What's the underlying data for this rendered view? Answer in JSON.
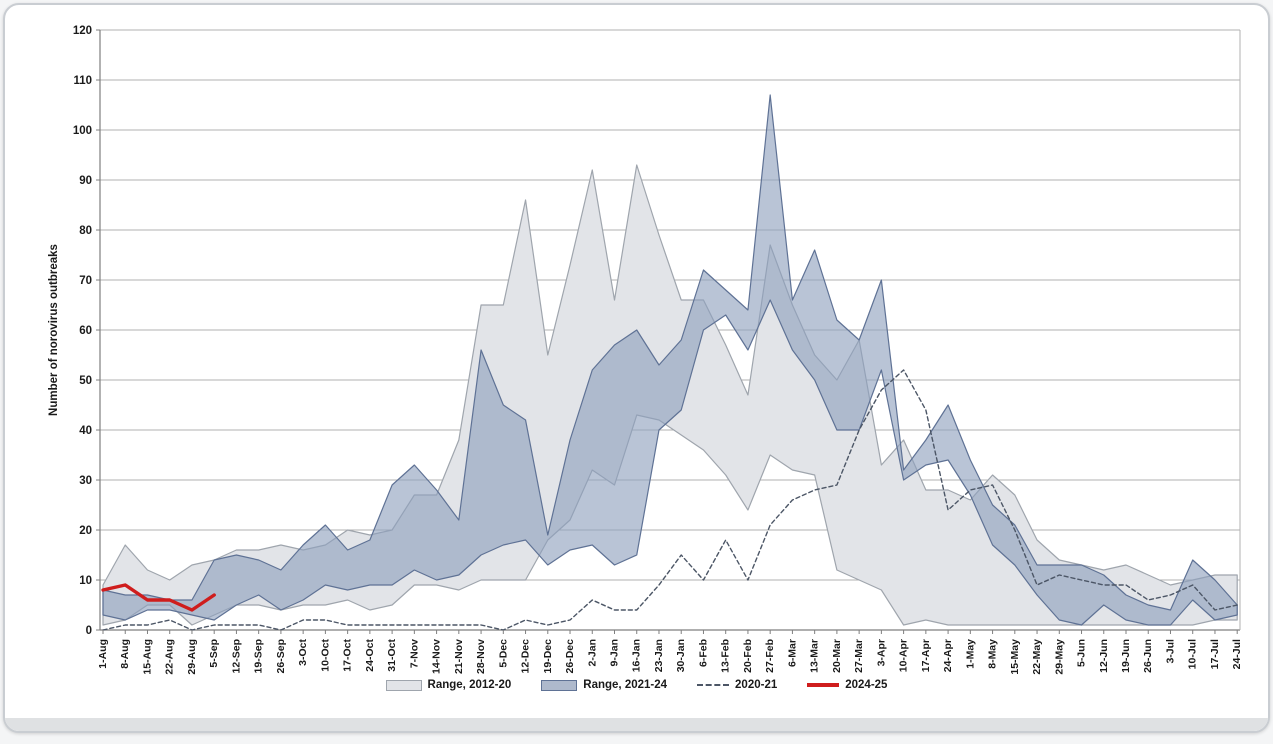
{
  "chart_data": {
    "type": "area",
    "title": "",
    "xlabel": "",
    "ylabel": "Number of norovirus outbreaks",
    "ylim": [
      0,
      120
    ],
    "ytick_step": 10,
    "grid": "horizontal-gridlines-on",
    "legend_position": "bottom",
    "categories": [
      "1-Aug",
      "8-Aug",
      "15-Aug",
      "22-Aug",
      "29-Aug",
      "5-Sep",
      "12-Sep",
      "19-Sep",
      "26-Sep",
      "3-Oct",
      "10-Oct",
      "17-Oct",
      "24-Oct",
      "31-Oct",
      "7-Nov",
      "14-Nov",
      "21-Nov",
      "28-Nov",
      "5-Dec",
      "12-Dec",
      "19-Dec",
      "26-Dec",
      "2-Jan",
      "9-Jan",
      "16-Jan",
      "23-Jan",
      "30-Jan",
      "6-Feb",
      "13-Feb",
      "20-Feb",
      "27-Feb",
      "6-Mar",
      "13-Mar",
      "20-Mar",
      "27-Mar",
      "3-Apr",
      "10-Apr",
      "17-Apr",
      "24-Apr",
      "1-May",
      "8-May",
      "15-May",
      "22-May",
      "29-May",
      "5-Jun",
      "12-Jun",
      "19-Jun",
      "26-Jun",
      "3-Jul",
      "10-Jul",
      "17-Jul",
      "24-Jul"
    ],
    "series": [
      {
        "name": "Range, 2012-20",
        "type": "band",
        "fill": "#e2e4e8",
        "border": "#9fa5ad",
        "min": [
          1,
          2,
          5,
          5,
          1,
          3,
          5,
          5,
          4,
          5,
          5,
          6,
          4,
          5,
          9,
          9,
          8,
          10,
          10,
          10,
          18,
          22,
          32,
          29,
          43,
          42,
          39,
          36,
          31,
          24,
          35,
          32,
          31,
          12,
          10,
          8,
          1,
          2,
          1,
          1,
          1,
          1,
          1,
          1,
          1,
          1,
          1,
          1,
          1,
          1,
          2,
          2
        ],
        "max": [
          9,
          17,
          12,
          10,
          13,
          14,
          16,
          16,
          17,
          16,
          17,
          20,
          19,
          20,
          27,
          27,
          38,
          65,
          65,
          86,
          55,
          73,
          92,
          66,
          93,
          79,
          66,
          66,
          57,
          47,
          77,
          65,
          55,
          50,
          58,
          33,
          38,
          28,
          28,
          26,
          31,
          27,
          18,
          14,
          13,
          12,
          13,
          11,
          9,
          10,
          11,
          11
        ]
      },
      {
        "name": "Range, 2021-24",
        "type": "band",
        "fill": "#8e9fbd",
        "fill_opacity": 0.62,
        "border": "#5f7295",
        "min": [
          3,
          2,
          4,
          4,
          3,
          2,
          5,
          7,
          4,
          6,
          9,
          8,
          9,
          9,
          12,
          10,
          11,
          15,
          17,
          18,
          13,
          16,
          17,
          13,
          15,
          40,
          44,
          60,
          63,
          56,
          66,
          56,
          50,
          40,
          40,
          52,
          30,
          33,
          34,
          27,
          17,
          13,
          7,
          2,
          1,
          5,
          2,
          1,
          1,
          6,
          2,
          3
        ],
        "max": [
          8,
          7,
          7,
          6,
          6,
          14,
          15,
          14,
          12,
          17,
          21,
          16,
          18,
          29,
          33,
          28,
          22,
          56,
          45,
          42,
          19,
          38,
          52,
          57,
          60,
          53,
          58,
          72,
          68,
          64,
          107,
          66,
          76,
          62,
          58,
          70,
          32,
          38,
          45,
          34,
          25,
          21,
          13,
          13,
          13,
          11,
          7,
          5,
          4,
          14,
          10,
          5
        ]
      },
      {
        "name": "2020-21",
        "type": "line",
        "style": "dashed",
        "color": "#4c5666",
        "width": 1.4,
        "values": [
          0,
          1,
          1,
          2,
          0,
          1,
          1,
          1,
          0,
          2,
          2,
          1,
          1,
          1,
          1,
          1,
          1,
          1,
          0,
          2,
          1,
          2,
          6,
          4,
          4,
          9,
          15,
          10,
          18,
          10,
          21,
          26,
          28,
          29,
          40,
          48,
          52,
          44,
          24,
          28,
          29,
          20,
          9,
          11,
          10,
          9,
          9,
          6,
          7,
          9,
          4,
          5
        ]
      },
      {
        "name": "2024-25",
        "type": "line",
        "style": "solid",
        "color": "#cf1d1d",
        "width": 3.4,
        "values": [
          8,
          9,
          6,
          6,
          4,
          7
        ]
      }
    ]
  },
  "axis_style": {
    "grid_color": "#b2b2b2",
    "axis_color": "#7f7f7f",
    "tick_label_color": "#1a1a1a"
  }
}
